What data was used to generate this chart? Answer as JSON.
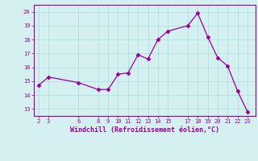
{
  "x": [
    2,
    3,
    6,
    8,
    9,
    10,
    11,
    12,
    13,
    14,
    15,
    17,
    18,
    19,
    20,
    21,
    22,
    23
  ],
  "y": [
    14.7,
    15.3,
    14.9,
    14.4,
    14.4,
    15.5,
    15.6,
    16.9,
    16.6,
    18.0,
    18.6,
    19.0,
    19.9,
    18.2,
    16.7,
    16.1,
    14.3,
    12.8
  ],
  "xlabel": "Windchill (Refroidissement éolien,°C)",
  "xlim": [
    1.5,
    23.8
  ],
  "ylim": [
    12.5,
    20.5
  ],
  "yticks": [
    13,
    14,
    15,
    16,
    17,
    18,
    19,
    20
  ],
  "xticks": [
    2,
    3,
    6,
    8,
    9,
    10,
    11,
    12,
    13,
    14,
    15,
    17,
    18,
    19,
    20,
    21,
    22,
    23
  ],
  "line_color": "#990099",
  "marker": "D",
  "marker_size": 2.5,
  "bg_color": "#d4f0f0",
  "grid_color": "#aadddd"
}
